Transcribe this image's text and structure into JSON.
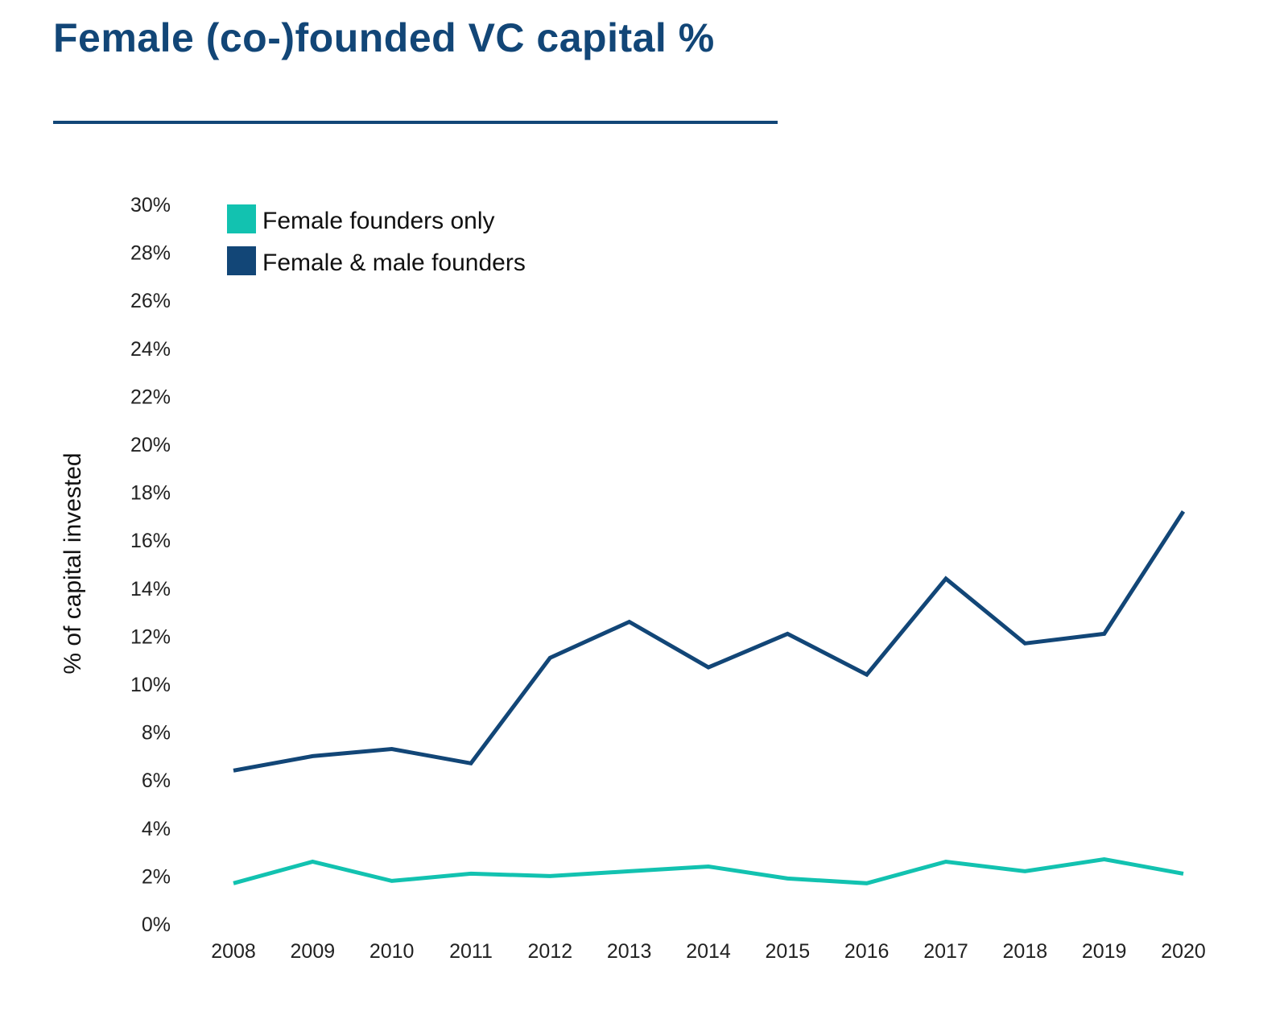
{
  "chart_data": {
    "type": "line",
    "title": "Female (co-)founded VC capital %",
    "ylabel": "% of capital invested",
    "xlabel": "",
    "x": [
      "2008",
      "2009",
      "2010",
      "2011",
      "2012",
      "2013",
      "2014",
      "2015",
      "2016",
      "2017",
      "2018",
      "2019",
      "2020"
    ],
    "ylim": [
      0,
      30
    ],
    "yticks": [
      "0%",
      "2%",
      "4%",
      "6%",
      "8%",
      "10%",
      "12%",
      "14%",
      "16%",
      "18%",
      "20%",
      "22%",
      "24%",
      "26%",
      "28%",
      "30%"
    ],
    "grid": false,
    "legend_position": "top-left",
    "series": [
      {
        "name": "Female founders only",
        "color": "#12c2b0",
        "values": [
          1.7,
          2.6,
          1.8,
          2.1,
          2.0,
          2.2,
          2.4,
          1.9,
          1.7,
          2.6,
          2.2,
          2.7,
          2.1
        ]
      },
      {
        "name": "Female & male founders",
        "color": "#124677",
        "values": [
          6.4,
          7.0,
          7.3,
          6.7,
          11.1,
          12.6,
          10.7,
          12.1,
          10.4,
          14.4,
          11.7,
          12.1,
          17.2
        ]
      }
    ]
  }
}
